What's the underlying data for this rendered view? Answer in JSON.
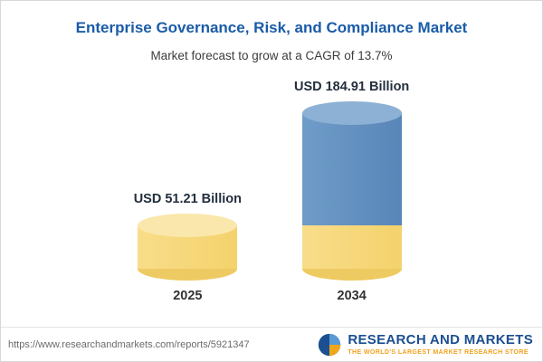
{
  "chart_data": {
    "type": "bar",
    "title": "Enterprise Governance, Risk, and Compliance Market",
    "subtitle": "Market forecast to grow at a CAGR of 13.7%",
    "cagr_percent": 13.7,
    "categories": [
      "2025",
      "2034"
    ],
    "values": [
      51.21,
      184.91
    ],
    "value_labels": [
      "USD 51.21 Billion",
      "USD 184.91 Billion"
    ],
    "unit": "USD Billion",
    "ylim": [
      0,
      200
    ],
    "grid": false,
    "legend": "none",
    "colors": {
      "title": "#1a5ca8",
      "bar_2025": "#f4d26c",
      "bar_2034": "#5886b8",
      "bar_2034_base_segment": "#f4d26c"
    }
  },
  "footer": {
    "source_url": "https://www.researchandmarkets.com/reports/5921347",
    "logo_text": "RESEARCH AND MARKETS",
    "logo_tagline": "THE WORLD'S LARGEST MARKET RESEARCH STORE"
  }
}
